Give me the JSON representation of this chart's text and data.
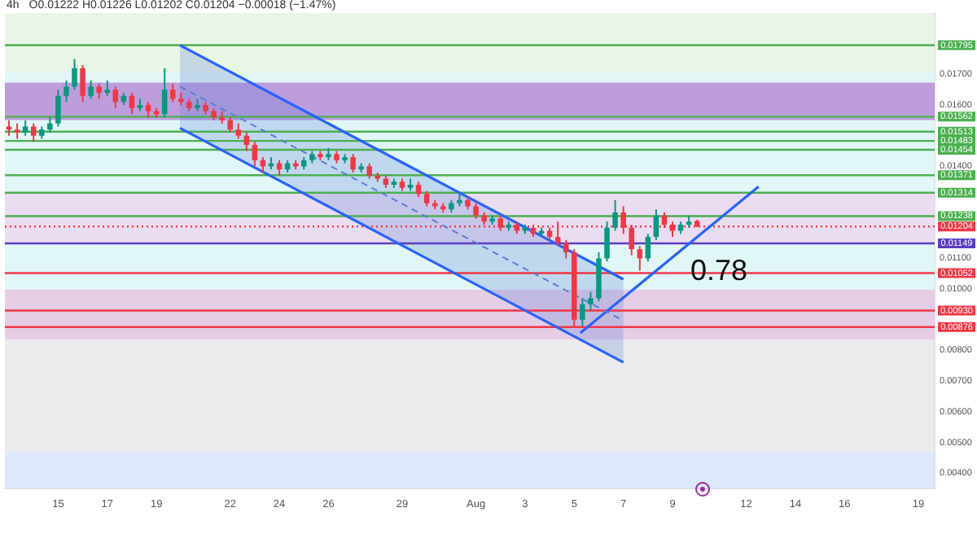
{
  "chart_data": {
    "type": "candlestick",
    "title": "4h",
    "subtitle": "O0.01222 H0.01226 L0.01202 C0.01204 −0.00018 (−1.47%)",
    "x": [
      "--07-13T00:00",
      "--07-13T08:00",
      "--07-13T16:00",
      "--07-14T00:00",
      "--07-14T08:00",
      "--07-14T16:00",
      "--07-15T00:00",
      "--07-15T08:00",
      "--07-15T16:00",
      "--07-16T00:00",
      "--07-16T08:00",
      "--07-16T16:00",
      "--07-17T00:00",
      "--07-17T08:00",
      "--07-17T16:00",
      "--07-18T00:00",
      "--07-18T08:00",
      "--07-18T16:00",
      "--07-19T00:00",
      "--07-19T08:00",
      "--07-19T16:00",
      "--07-20T00:00",
      "--07-20T08:00",
      "--07-20T16:00",
      "--07-21T00:00",
      "--07-21T08:00",
      "--07-21T16:00",
      "--07-22T00:00",
      "--07-22T08:00",
      "--07-22T16:00",
      "--07-23T00:00",
      "--07-23T08:00",
      "--07-23T16:00",
      "--07-24T00:00",
      "--07-24T08:00",
      "--07-24T16:00",
      "--07-25T00:00",
      "--07-25T08:00",
      "--07-25T16:00",
      "--07-26T00:00",
      "--07-26T08:00",
      "--07-26T16:00",
      "--07-27T00:00",
      "--07-27T08:00",
      "--07-27T16:00",
      "--07-28T00:00",
      "--07-28T08:00",
      "--07-28T16:00",
      "--07-29T00:00",
      "--07-29T08:00",
      "--07-29T16:00",
      "--07-30T00:00",
      "--07-30T08:00",
      "--07-30T16:00",
      "--07-31T00:00",
      "--07-31T08:00",
      "--07-31T16:00",
      "--08-01T00:00",
      "--08-01T08:00",
      "--08-01T16:00",
      "--08-02T00:00",
      "--08-02T08:00",
      "--08-02T16:00",
      "--08-03T00:00",
      "--08-03T08:00",
      "--08-03T16:00",
      "--08-04T00:00",
      "--08-04T08:00",
      "--08-04T16:00",
      "--08-05T00:00",
      "--08-05T08:00",
      "--08-05T16:00",
      "--08-06T00:00",
      "--08-06T08:00",
      "--08-06T16:00",
      "--08-07T00:00",
      "--08-07T08:00",
      "--08-07T16:00",
      "--08-08T00:00",
      "--08-08T08:00",
      "--08-08T16:00",
      "--08-09T00:00",
      "--08-09T08:00",
      "--08-09T16:00",
      "--08-10T00:00"
    ],
    "ohlc": [
      [
        0.0153,
        0.0155,
        0.015,
        0.0152
      ],
      [
        0.0152,
        0.0154,
        0.0149,
        0.0151
      ],
      [
        0.0151,
        0.0155,
        0.015,
        0.0153
      ],
      [
        0.0153,
        0.0154,
        0.0148,
        0.015
      ],
      [
        0.015,
        0.0153,
        0.0149,
        0.0152
      ],
      [
        0.0152,
        0.0156,
        0.0151,
        0.0154
      ],
      [
        0.0154,
        0.0165,
        0.0153,
        0.0163
      ],
      [
        0.0163,
        0.0168,
        0.0161,
        0.0166
      ],
      [
        0.0166,
        0.0175,
        0.0165,
        0.0172
      ],
      [
        0.0172,
        0.0173,
        0.0161,
        0.0163
      ],
      [
        0.0163,
        0.0168,
        0.0162,
        0.0166
      ],
      [
        0.0166,
        0.0167,
        0.0162,
        0.0164
      ],
      [
        0.0164,
        0.0168,
        0.0163,
        0.0165
      ],
      [
        0.0165,
        0.0166,
        0.0159,
        0.0161
      ],
      [
        0.0161,
        0.0164,
        0.016,
        0.0163
      ],
      [
        0.0163,
        0.0164,
        0.0157,
        0.0159
      ],
      [
        0.0159,
        0.0162,
        0.0158,
        0.016
      ],
      [
        0.016,
        0.0161,
        0.0156,
        0.0158
      ],
      [
        0.0158,
        0.0159,
        0.0156,
        0.0157
      ],
      [
        0.0157,
        0.0172,
        0.0156,
        0.0165
      ],
      [
        0.0165,
        0.0167,
        0.0161,
        0.0162
      ],
      [
        0.0162,
        0.0164,
        0.016,
        0.0161
      ],
      [
        0.0161,
        0.0162,
        0.0158,
        0.0159
      ],
      [
        0.0159,
        0.0162,
        0.0158,
        0.016
      ],
      [
        0.016,
        0.0161,
        0.0157,
        0.0158
      ],
      [
        0.0158,
        0.0159,
        0.0155,
        0.0156
      ],
      [
        0.0156,
        0.0158,
        0.0154,
        0.0155
      ],
      [
        0.0155,
        0.0156,
        0.0151,
        0.0152
      ],
      [
        0.0152,
        0.0154,
        0.0149,
        0.015
      ],
      [
        0.015,
        0.0151,
        0.0145,
        0.0147
      ],
      [
        0.0147,
        0.0148,
        0.014,
        0.0142
      ],
      [
        0.0142,
        0.0143,
        0.0138,
        0.014
      ],
      [
        0.014,
        0.0143,
        0.0139,
        0.0141
      ],
      [
        0.0141,
        0.0142,
        0.0137,
        0.0139
      ],
      [
        0.0139,
        0.0142,
        0.0138,
        0.0141
      ],
      [
        0.0141,
        0.0142,
        0.0139,
        0.014
      ],
      [
        0.014,
        0.0143,
        0.0139,
        0.0142
      ],
      [
        0.0142,
        0.0145,
        0.0141,
        0.0144
      ],
      [
        0.0144,
        0.0145,
        0.0142,
        0.0143
      ],
      [
        0.0143,
        0.0146,
        0.0142,
        0.0144
      ],
      [
        0.0144,
        0.0145,
        0.0141,
        0.0142
      ],
      [
        0.0142,
        0.0144,
        0.0141,
        0.0143
      ],
      [
        0.0143,
        0.0144,
        0.0138,
        0.0139
      ],
      [
        0.0139,
        0.0141,
        0.0138,
        0.014
      ],
      [
        0.014,
        0.0141,
        0.0136,
        0.0137
      ],
      [
        0.0137,
        0.0138,
        0.0135,
        0.0136
      ],
      [
        0.0136,
        0.0137,
        0.0133,
        0.0134
      ],
      [
        0.0134,
        0.0136,
        0.0133,
        0.0135
      ],
      [
        0.0135,
        0.0136,
        0.0132,
        0.0133
      ],
      [
        0.0133,
        0.0136,
        0.0132,
        0.0134
      ],
      [
        0.0134,
        0.0135,
        0.013,
        0.0131
      ],
      [
        0.0131,
        0.0132,
        0.0127,
        0.0128
      ],
      [
        0.0128,
        0.0129,
        0.0126,
        0.0127
      ],
      [
        0.0127,
        0.0128,
        0.0125,
        0.0126
      ],
      [
        0.0126,
        0.0129,
        0.0125,
        0.0128
      ],
      [
        0.0128,
        0.0131,
        0.0127,
        0.0129
      ],
      [
        0.0129,
        0.013,
        0.0126,
        0.0127
      ],
      [
        0.0127,
        0.0128,
        0.0123,
        0.0124
      ],
      [
        0.0124,
        0.0125,
        0.0121,
        0.0122
      ],
      [
        0.0122,
        0.0124,
        0.0121,
        0.0123
      ],
      [
        0.0123,
        0.0124,
        0.0119,
        0.012
      ],
      [
        0.012,
        0.0122,
        0.0119,
        0.0121
      ],
      [
        0.0121,
        0.0122,
        0.0118,
        0.0119
      ],
      [
        0.0119,
        0.0121,
        0.0118,
        0.012
      ],
      [
        0.012,
        0.0121,
        0.0117,
        0.0118
      ],
      [
        0.0118,
        0.012,
        0.0117,
        0.0119
      ],
      [
        0.0119,
        0.012,
        0.0116,
        0.0117
      ],
      [
        0.0117,
        0.0122,
        0.0114,
        0.0115
      ],
      [
        0.0115,
        0.0116,
        0.011,
        0.0112
      ],
      [
        0.0112,
        0.0113,
        0.00876,
        0.009
      ],
      [
        0.009,
        0.0097,
        0.0088,
        0.0095
      ],
      [
        0.0095,
        0.0099,
        0.0093,
        0.0097
      ],
      [
        0.0097,
        0.0112,
        0.0096,
        0.011
      ],
      [
        0.011,
        0.0122,
        0.0109,
        0.012
      ],
      [
        0.012,
        0.0129,
        0.0119,
        0.0125
      ],
      [
        0.0125,
        0.0127,
        0.0118,
        0.012
      ],
      [
        0.012,
        0.0121,
        0.0111,
        0.0113
      ],
      [
        0.0113,
        0.0114,
        0.0106,
        0.011
      ],
      [
        0.011,
        0.0118,
        0.0109,
        0.0117
      ],
      [
        0.0117,
        0.0126,
        0.0116,
        0.0124
      ],
      [
        0.0124,
        0.0125,
        0.012,
        0.0121
      ],
      [
        0.0121,
        0.0122,
        0.0117,
        0.0119
      ],
      [
        0.0119,
        0.0122,
        0.0118,
        0.0121
      ],
      [
        0.0121,
        0.0124,
        0.012,
        0.0122
      ],
      [
        0.01222,
        0.01226,
        0.01202,
        0.01204
      ]
    ],
    "colors": [
      "#f23645",
      "#f23645",
      "#089981",
      "#f23645",
      "#089981",
      "#089981",
      "#089981",
      "#089981",
      "#089981",
      "#f23645",
      "#089981",
      "#f23645",
      "#089981",
      "#f23645",
      "#089981",
      "#f23645",
      "#089981",
      "#f23645",
      "#f23645",
      "#089981",
      "#f23645",
      "#f23645",
      "#f23645",
      "#089981",
      "#f23645",
      "#f23645",
      "#f23645",
      "#f23645",
      "#f23645",
      "#f23645",
      "#f23645",
      "#f23645",
      "#089981",
      "#f23645",
      "#089981",
      "#f23645",
      "#089981",
      "#089981",
      "#f23645",
      "#089981",
      "#f23645",
      "#089981",
      "#f23645",
      "#089981",
      "#f23645",
      "#f23645",
      "#f23645",
      "#089981",
      "#f23645",
      "#089981",
      "#f23645",
      "#f23645",
      "#f23645",
      "#f23645",
      "#089981",
      "#089981",
      "#f23645",
      "#f23645",
      "#f23645",
      "#089981",
      "#f23645",
      "#089981",
      "#f23645",
      "#089981",
      "#f23645",
      "#089981",
      "#f23645",
      "#f23645",
      "#f23645",
      "#f23645",
      "#089981",
      "#089981",
      "#089981",
      "#089981",
      "#089981",
      "#f23645",
      "#f23645",
      "#f23645",
      "#089981",
      "#089981",
      "#f23645",
      "#f23645",
      "#089981",
      "#089981",
      "#f23645"
    ],
    "series": [
      {
        "type": "line",
        "color": "#2962ff",
        "x": [
          "--07-19T23:00",
          "--08-07T00:00"
        ],
        "values": [
          0.01795,
          0.01032
        ]
      },
      {
        "type": "line",
        "color": "#2962ff",
        "x": [
          "--07-19T23:00",
          "--08-07T00:00"
        ],
        "values": [
          0.01525,
          0.00761
        ]
      },
      {
        "type": "line",
        "color": "#5b7fd6",
        "line_style": "dashed",
        "x": [
          "--07-19T23:00",
          "--08-07T00:00"
        ],
        "values": [
          0.0166,
          0.00897
        ],
        "lower": [
          0.01525,
          0.00761
        ],
        "upper": [
          0.01795,
          0.01032
        ]
      },
      {
        "type": "line",
        "color": "#2962ff",
        "x": [
          "--08-05T06:00",
          "--08-12T12:00"
        ],
        "values": [
          0.00857,
          0.01334
        ]
      }
    ],
    "xlim": [
      "--07-12T20:00",
      "--08-19T16:00"
    ],
    "xticks": [
      {
        "value": "--07-15",
        "label": "15"
      },
      {
        "value": "--07-17",
        "label": "17"
      },
      {
        "value": "--07-19",
        "label": "19"
      },
      {
        "value": "--07-22",
        "label": "22"
      },
      {
        "value": "--07-24",
        "label": "24"
      },
      {
        "value": "--07-26",
        "label": "26"
      },
      {
        "value": "--07-29",
        "label": "29"
      },
      {
        "value": "--08-01",
        "label": "Aug"
      },
      {
        "value": "--08-03",
        "label": "3"
      },
      {
        "value": "--08-05",
        "label": "5"
      },
      {
        "value": "--08-07",
        "label": "7"
      },
      {
        "value": "--08-09",
        "label": "9"
      },
      {
        "value": "--08-12",
        "label": "12"
      },
      {
        "value": "--08-14",
        "label": "14"
      },
      {
        "value": "--08-16",
        "label": "16"
      },
      {
        "value": "--08-19",
        "label": "19"
      }
    ],
    "ylim": [
      0.0035,
      0.019
    ],
    "yticks": [
      {
        "value": 0.017,
        "label": "0.01700"
      },
      {
        "value": 0.016,
        "label": "0.01600"
      },
      {
        "value": 0.014,
        "label": "0.01400"
      },
      {
        "value": 0.011,
        "label": "0.01100"
      },
      {
        "value": 0.01,
        "label": "0.01000"
      },
      {
        "value": 0.008,
        "label": "0.00800"
      },
      {
        "value": 0.007,
        "label": "0.00700"
      },
      {
        "value": 0.006,
        "label": "0.00600"
      },
      {
        "value": 0.005,
        "label": "0.00500"
      },
      {
        "value": 0.004,
        "label": "0.00400"
      }
    ],
    "bands": [
      {
        "axis": "y",
        "from": 0.01706,
        "to": 0.019,
        "color": "#e4f2e1"
      },
      {
        "axis": "y",
        "from": 0.00998,
        "to": 0.01706,
        "color": "#d9f4f4"
      },
      {
        "axis": "y",
        "from": 0.00469,
        "to": 0.00998,
        "color": "#e6e6e8"
      },
      {
        "axis": "y",
        "from": 0.0035,
        "to": 0.00469,
        "color": "#d6e2fb"
      },
      {
        "axis": "y",
        "from": 0.01551,
        "to": 0.01673,
        "color": "#b487d4"
      },
      {
        "axis": "y",
        "from": 0.01149,
        "to": 0.01314,
        "color": "#ecd6f0"
      },
      {
        "axis": "y",
        "from": 0.00835,
        "to": 0.00998,
        "color": "#e4c6e4"
      }
    ],
    "ref_lines": [
      {
        "axis": "y",
        "value": 0.01795,
        "label": "0.01795",
        "color": "#4caf50"
      },
      {
        "axis": "y",
        "value": 0.01562,
        "label": "0.01562",
        "color": "#4caf50"
      },
      {
        "axis": "y",
        "value": 0.01513,
        "label": "0.01513",
        "color": "#4caf50"
      },
      {
        "axis": "y",
        "value": 0.01483,
        "label": "0.01483",
        "color": "#4caf50"
      },
      {
        "axis": "y",
        "value": 0.01454,
        "label": "0.01454",
        "color": "#4caf50"
      },
      {
        "axis": "y",
        "value": 0.01371,
        "label": "0.01371",
        "color": "#4caf50"
      },
      {
        "axis": "y",
        "value": 0.01314,
        "label": "0.01314",
        "color": "#4caf50"
      },
      {
        "axis": "y",
        "value": 0.01238,
        "label": "0.01238",
        "color": "#4caf50"
      },
      {
        "axis": "y",
        "value": 0.01204,
        "label": "0.01204",
        "color": "#f23645",
        "line_style": "dotted"
      },
      {
        "axis": "y",
        "value": 0.01149,
        "label": "0.01149",
        "color": "#5b3cc4"
      },
      {
        "axis": "y",
        "value": 0.01052,
        "label": "0.01052",
        "color": "#f23645"
      },
      {
        "axis": "y",
        "value": 0.0093,
        "label": "0.00930",
        "color": "#f23645"
      },
      {
        "axis": "y",
        "value": 0.00876,
        "label": "0.00876",
        "color": "#f23645"
      }
    ],
    "annotations": [
      "0.78"
    ]
  }
}
